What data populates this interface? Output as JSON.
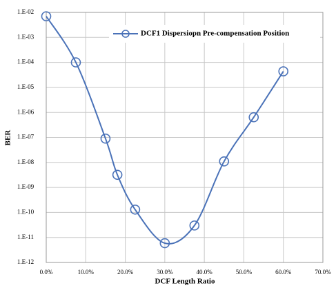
{
  "chart_data": {
    "type": "line",
    "xlabel": "DCF Length Ratio",
    "ylabel": "BER",
    "x": [
      0,
      7.5,
      15,
      18,
      22.5,
      30,
      37.5,
      45,
      52.5,
      60
    ],
    "series": [
      {
        "name": "DCF1 Dispersiopn Pre-compensation  Position",
        "color": "#4a72b8",
        "values": [
          0.007,
          0.0001,
          9e-08,
          3.2e-09,
          1.3e-10,
          5.9e-12,
          3e-11,
          1.1e-08,
          6.4e-07,
          4.4e-05
        ]
      }
    ],
    "xlim": [
      0,
      70
    ],
    "xticks": [
      {
        "value": 0,
        "label": "0.0%"
      },
      {
        "value": 10,
        "label": "10.0%"
      },
      {
        "value": 20,
        "label": "20.0%"
      },
      {
        "value": 30,
        "label": "30.0%"
      },
      {
        "value": 40,
        "label": "40.0%"
      },
      {
        "value": 50,
        "label": "50.0%"
      },
      {
        "value": 60,
        "label": "60.0%"
      },
      {
        "value": 70,
        "label": "70.0%"
      }
    ],
    "ylim": [
      1e-12,
      0.01
    ],
    "yticks": [
      {
        "value": 1e-12,
        "label": "1.E-12"
      },
      {
        "value": 1e-11,
        "label": "1.E-11"
      },
      {
        "value": 1e-10,
        "label": "1.E-10"
      },
      {
        "value": 1e-09,
        "label": "1.E-09"
      },
      {
        "value": 1e-08,
        "label": "1.E-08"
      },
      {
        "value": 1e-07,
        "label": "1.E-07"
      },
      {
        "value": 1e-06,
        "label": "1.E-06"
      },
      {
        "value": 1e-05,
        "label": "1.E-05"
      },
      {
        "value": 0.0001,
        "label": "1.E-04"
      },
      {
        "value": 0.001,
        "label": "1.E-03"
      },
      {
        "value": 0.01,
        "label": "1.E-02"
      }
    ],
    "ylog": true,
    "grid": true,
    "legend": "upper right"
  }
}
